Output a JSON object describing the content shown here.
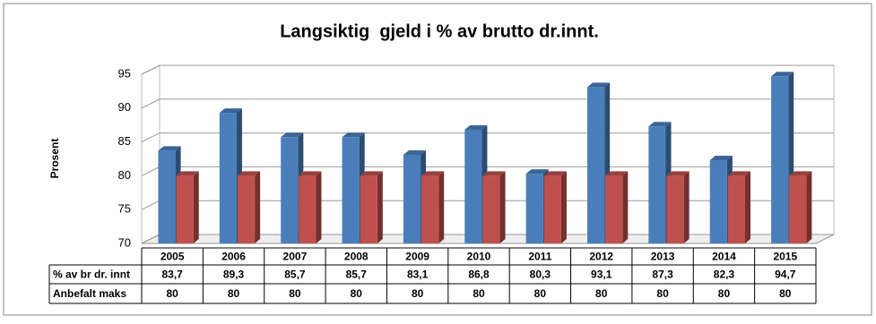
{
  "chart_data": {
    "type": "bar3d",
    "title": "Langsiktig  gjeld i % av brutto dr.innt.",
    "y_label": "Prosent",
    "categories": [
      "2005",
      "2006",
      "2007",
      "2008",
      "2009",
      "2010",
      "2011",
      "2012",
      "2013",
      "2014",
      "2015"
    ],
    "series": [
      {
        "name": "% av br dr. innt",
        "color": "#4a7ebb",
        "values": [
          83.7,
          89.3,
          85.7,
          85.7,
          83.1,
          86.8,
          80.3,
          93.1,
          87.3,
          82.3,
          94.7
        ],
        "value_labels": [
          "83,7",
          "89,3",
          "85,7",
          "85,7",
          "83,1",
          "86,8",
          "80,3",
          "93,1",
          "87,3",
          "82,3",
          "94,7"
        ]
      },
      {
        "name": "Anbefalt maks",
        "color": "#c0504d",
        "values": [
          80,
          80,
          80,
          80,
          80,
          80,
          80,
          80,
          80,
          80,
          80
        ]
      }
    ],
    "ylim": [
      70,
      95
    ],
    "yticks": [
      70,
      75,
      80,
      85,
      90,
      95
    ],
    "grid": true
  }
}
